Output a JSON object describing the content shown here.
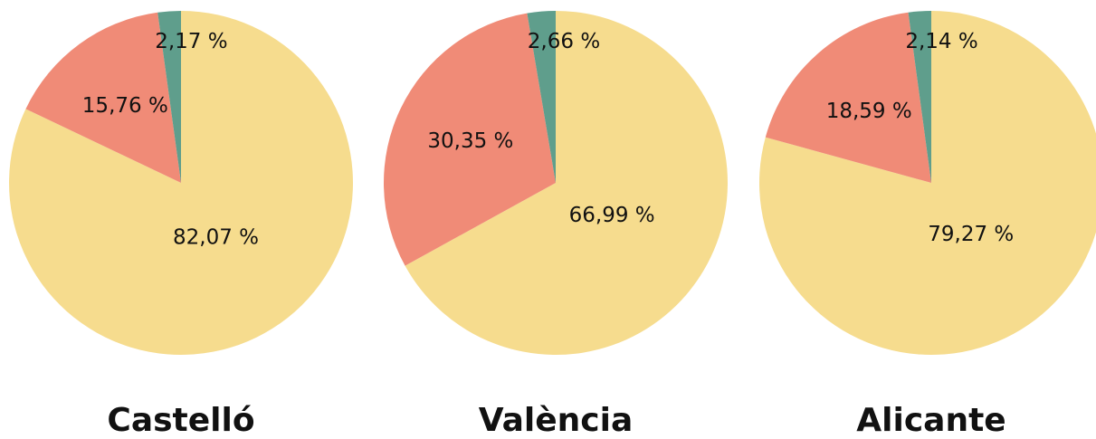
{
  "chart_data": [
    {
      "type": "pie",
      "title": "Castelló",
      "values": [
        82.07,
        15.76,
        2.17
      ],
      "value_labels": [
        "82,07 %",
        "15,76 %",
        "2,17 %"
      ],
      "colors": [
        "#f6dc8e",
        "#f08b77",
        "#5f9e8c"
      ]
    },
    {
      "type": "pie",
      "title": "València",
      "values": [
        66.99,
        30.35,
        2.66
      ],
      "value_labels": [
        "66,99 %",
        "30,35 %",
        "2,66 %"
      ],
      "colors": [
        "#f6dc8e",
        "#f08b77",
        "#5f9e8c"
      ]
    },
    {
      "type": "pie",
      "title": "Alicante",
      "values": [
        79.27,
        18.59,
        2.14
      ],
      "value_labels": [
        "79,27 %",
        "18,59 %",
        "2,14 %"
      ],
      "colors": [
        "#f6dc8e",
        "#f08b77",
        "#5f9e8c"
      ]
    }
  ]
}
